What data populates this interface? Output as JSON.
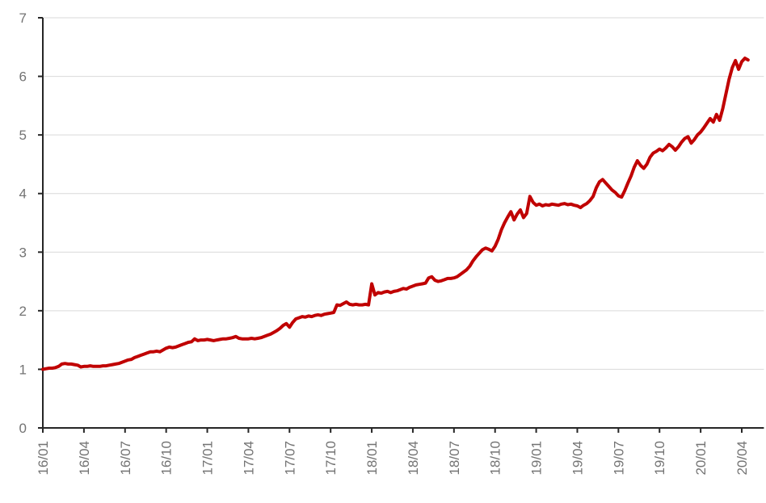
{
  "chart_data": {
    "type": "line",
    "title": "",
    "xlabel": "",
    "ylabel": "",
    "ylim": [
      0,
      7
    ],
    "y_ticks": [
      0,
      1,
      2,
      3,
      4,
      5,
      6,
      7
    ],
    "x_tick_labels": [
      "16/01",
      "16/04",
      "16/07",
      "16/10",
      "17/01",
      "17/04",
      "17/07",
      "17/10",
      "18/01",
      "18/04",
      "18/07",
      "18/10",
      "19/01",
      "19/04",
      "19/07",
      "19/10",
      "20/01",
      "20/04"
    ],
    "x_tick_positions": [
      0,
      13,
      26,
      39,
      52,
      65,
      78,
      91,
      104,
      117,
      130,
      143,
      156,
      169,
      182,
      195,
      208,
      221
    ],
    "x_domain": [
      0,
      228
    ],
    "x_unit": "week-index (weekly samples, Jan 2016 - mid Apr 2020)",
    "grid": "horizontal-light",
    "legend": "none",
    "axis_color": "#262626",
    "gridline_color": "#d9d9d9",
    "tick_label_color": "#737373",
    "background": "#ffffff",
    "series": [
      {
        "name": "cumulative-value-line",
        "color": "#c00000",
        "values": [
          1.0,
          1.01,
          1.02,
          1.02,
          1.03,
          1.05,
          1.09,
          1.1,
          1.09,
          1.09,
          1.08,
          1.07,
          1.04,
          1.05,
          1.05,
          1.06,
          1.05,
          1.05,
          1.05,
          1.06,
          1.06,
          1.07,
          1.08,
          1.09,
          1.1,
          1.12,
          1.14,
          1.16,
          1.17,
          1.2,
          1.22,
          1.24,
          1.26,
          1.28,
          1.3,
          1.3,
          1.31,
          1.3,
          1.33,
          1.36,
          1.38,
          1.37,
          1.38,
          1.4,
          1.42,
          1.44,
          1.46,
          1.47,
          1.52,
          1.49,
          1.5,
          1.5,
          1.51,
          1.5,
          1.49,
          1.5,
          1.51,
          1.52,
          1.52,
          1.53,
          1.54,
          1.56,
          1.53,
          1.52,
          1.52,
          1.52,
          1.53,
          1.52,
          1.53,
          1.54,
          1.56,
          1.58,
          1.6,
          1.63,
          1.66,
          1.7,
          1.75,
          1.78,
          1.72,
          1.8,
          1.86,
          1.88,
          1.9,
          1.89,
          1.91,
          1.9,
          1.92,
          1.93,
          1.92,
          1.94,
          1.95,
          1.96,
          1.97,
          2.1,
          2.09,
          2.12,
          2.15,
          2.11,
          2.1,
          2.11,
          2.1,
          2.1,
          2.11,
          2.1,
          2.46,
          2.27,
          2.31,
          2.3,
          2.32,
          2.33,
          2.31,
          2.33,
          2.34,
          2.36,
          2.38,
          2.37,
          2.4,
          2.42,
          2.44,
          2.45,
          2.46,
          2.47,
          2.56,
          2.58,
          2.52,
          2.5,
          2.51,
          2.53,
          2.55,
          2.55,
          2.56,
          2.58,
          2.62,
          2.66,
          2.7,
          2.76,
          2.85,
          2.92,
          2.98,
          3.04,
          3.07,
          3.05,
          3.02,
          3.1,
          3.22,
          3.38,
          3.5,
          3.6,
          3.69,
          3.55,
          3.65,
          3.72,
          3.59,
          3.66,
          3.95,
          3.85,
          3.8,
          3.82,
          3.79,
          3.81,
          3.8,
          3.82,
          3.81,
          3.8,
          3.82,
          3.83,
          3.81,
          3.82,
          3.8,
          3.79,
          3.76,
          3.8,
          3.83,
          3.88,
          3.95,
          4.1,
          4.2,
          4.24,
          4.18,
          4.12,
          4.06,
          4.02,
          3.96,
          3.94,
          4.05,
          4.18,
          4.3,
          4.45,
          4.56,
          4.48,
          4.43,
          4.5,
          4.62,
          4.69,
          4.72,
          4.76,
          4.73,
          4.78,
          4.84,
          4.8,
          4.74,
          4.8,
          4.88,
          4.94,
          4.97,
          4.86,
          4.92,
          5.0,
          5.05,
          5.12,
          5.2,
          5.28,
          5.22,
          5.35,
          5.25,
          5.45,
          5.7,
          5.95,
          6.15,
          6.27,
          6.12,
          6.25,
          6.31,
          6.28
        ]
      }
    ]
  }
}
